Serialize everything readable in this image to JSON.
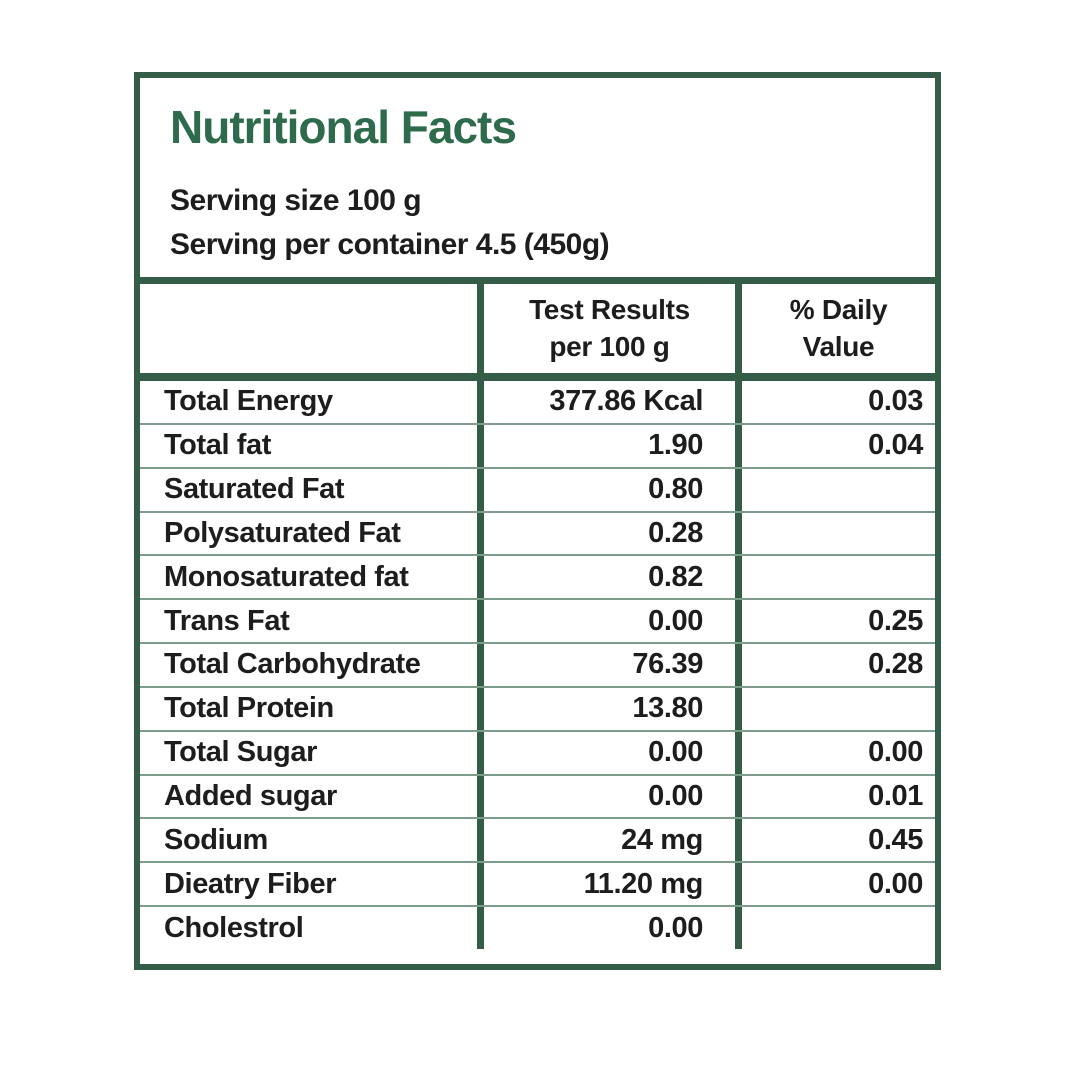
{
  "label": {
    "title": "Nutritional Facts",
    "serving": {
      "size": "Serving size 100 g",
      "per_container": "Serving per container 4.5 (450g)"
    },
    "table": {
      "header": {
        "nutrient": "",
        "test_results": [
          "Test Results",
          "per 100 g"
        ],
        "daily_value": [
          "% Daily",
          "Value"
        ]
      },
      "rows": [
        {
          "name": "Total Energy",
          "result": "377.86 Kcal",
          "daily": "0.03"
        },
        {
          "name": "Total fat",
          "result": "1.90",
          "daily": "0.04"
        },
        {
          "name": "Saturated Fat",
          "result": "0.80",
          "daily": ""
        },
        {
          "name": "Polysaturated Fat",
          "result": "0.28",
          "daily": ""
        },
        {
          "name": "Monosaturated fat",
          "result": "0.82",
          "daily": ""
        },
        {
          "name": "Trans Fat",
          "result": "0.00",
          "daily": "0.25"
        },
        {
          "name": "Total Carbohydrate",
          "result": "76.39",
          "daily": "0.28"
        },
        {
          "name": "Total Protein",
          "result": "13.80",
          "daily": ""
        },
        {
          "name": "Total Sugar",
          "result": "0.00",
          "daily": "0.00"
        },
        {
          "name": "Added sugar",
          "result": "0.00",
          "daily": "0.01"
        },
        {
          "name": "Sodium",
          "result": "24 mg",
          "daily": "0.45"
        },
        {
          "name": "Dieatry Fiber",
          "result": "11.20 mg",
          "daily": "0.00"
        },
        {
          "name": "Cholestrol",
          "result": "0.00",
          "daily": ""
        }
      ]
    },
    "colors": {
      "border_green": "#355c46",
      "row_line_green": "#7e9c8b",
      "title_green": "#2e6b4c",
      "text_black": "#1d1d1d"
    }
  }
}
